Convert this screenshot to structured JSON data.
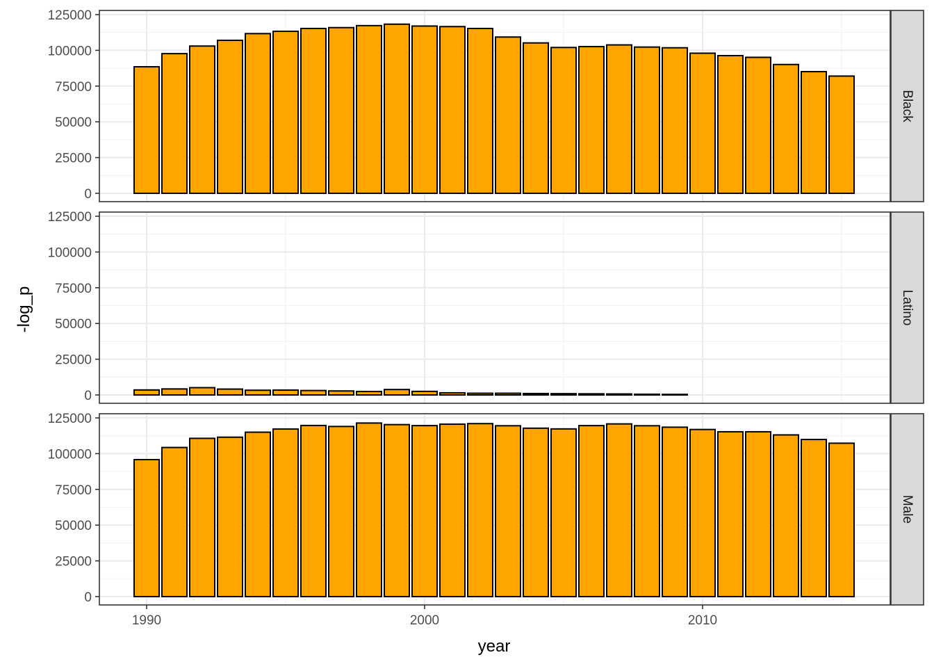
{
  "chart_data": {
    "type": "bar",
    "facet_direction": "rows",
    "xlabel": "year",
    "ylabel": "-log_p",
    "x_ticks": [
      1990,
      2000,
      2010
    ],
    "y_ticks": [
      0,
      25000,
      50000,
      75000,
      100000,
      125000
    ],
    "y_tick_labels": [
      "0",
      "25000",
      "50000",
      "75000",
      "100000",
      "125000"
    ],
    "x_tick_labels": [
      "1990",
      "2000",
      "2010"
    ],
    "ylim": [
      0,
      125000
    ],
    "grid": true,
    "bar_fill": "#FFA500",
    "bar_stroke": "#000000",
    "strip_fill": "#D9D9D9",
    "panels": [
      {
        "name": "Black",
        "x": [
          1990,
          1991,
          1992,
          1993,
          1994,
          1995,
          1996,
          1997,
          1998,
          1999,
          2000,
          2001,
          2002,
          2003,
          2004,
          2005,
          2006,
          2007,
          2008,
          2009,
          2010,
          2011,
          2012,
          2013,
          2014,
          2015
        ],
        "values": [
          88500,
          97700,
          103000,
          107000,
          111700,
          113300,
          115300,
          115900,
          117300,
          118300,
          117000,
          116600,
          115300,
          109300,
          105200,
          102000,
          102600,
          103800,
          102300,
          101800,
          98000,
          96300,
          95100,
          90100,
          85100,
          82000
        ]
      },
      {
        "name": "Latino",
        "x": [
          1990,
          1991,
          1992,
          1993,
          1994,
          1995,
          1996,
          1997,
          1998,
          1999,
          2000,
          2001,
          2002,
          2003,
          2004,
          2005,
          2006,
          2007,
          2008,
          2009
        ],
        "values": [
          3500,
          4200,
          5100,
          4100,
          3300,
          3400,
          3100,
          2800,
          2400,
          3800,
          2500,
          1500,
          1200,
          1200,
          1000,
          900,
          800,
          700,
          500,
          400
        ]
      },
      {
        "name": "Male",
        "x": [
          1990,
          1991,
          1992,
          1993,
          1994,
          1995,
          1996,
          1997,
          1998,
          1999,
          2000,
          2001,
          2002,
          2003,
          2004,
          2005,
          2006,
          2007,
          2008,
          2009,
          2010,
          2011,
          2012,
          2013,
          2014,
          2015
        ],
        "values": [
          95800,
          104300,
          110700,
          111500,
          115000,
          117200,
          119700,
          119000,
          121400,
          120300,
          119600,
          120600,
          121000,
          119500,
          117800,
          117300,
          119600,
          120800,
          119500,
          118500,
          116900,
          115300,
          115300,
          113100,
          109900,
          107300
        ]
      }
    ]
  }
}
